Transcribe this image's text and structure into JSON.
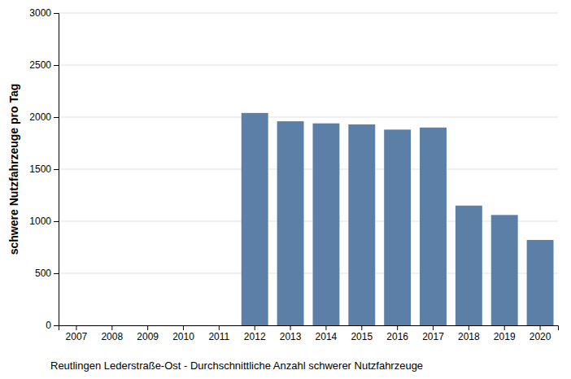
{
  "chart_data": {
    "type": "bar",
    "title": "Reutlingen Lederstraße-Ost - Durchschnittliche Anzahl schwerer Nutzfahrzeuge",
    "ylabel": "schwere Nutzfahrzeuge pro Tag",
    "categories": [
      "2007",
      "2008",
      "2009",
      "2010",
      "2011",
      "2012",
      "2013",
      "2014",
      "2015",
      "2016",
      "2017",
      "2018",
      "2019",
      "2020"
    ],
    "values": [
      0,
      0,
      0,
      0,
      0,
      2040,
      1960,
      1940,
      1930,
      1880,
      1900,
      1150,
      1060,
      820
    ],
    "color": "#5B7FA6",
    "ylim": [
      0,
      3000
    ],
    "yticks": [
      0,
      500,
      1000,
      1500,
      2000,
      2500,
      3000
    ],
    "grid": true
  }
}
